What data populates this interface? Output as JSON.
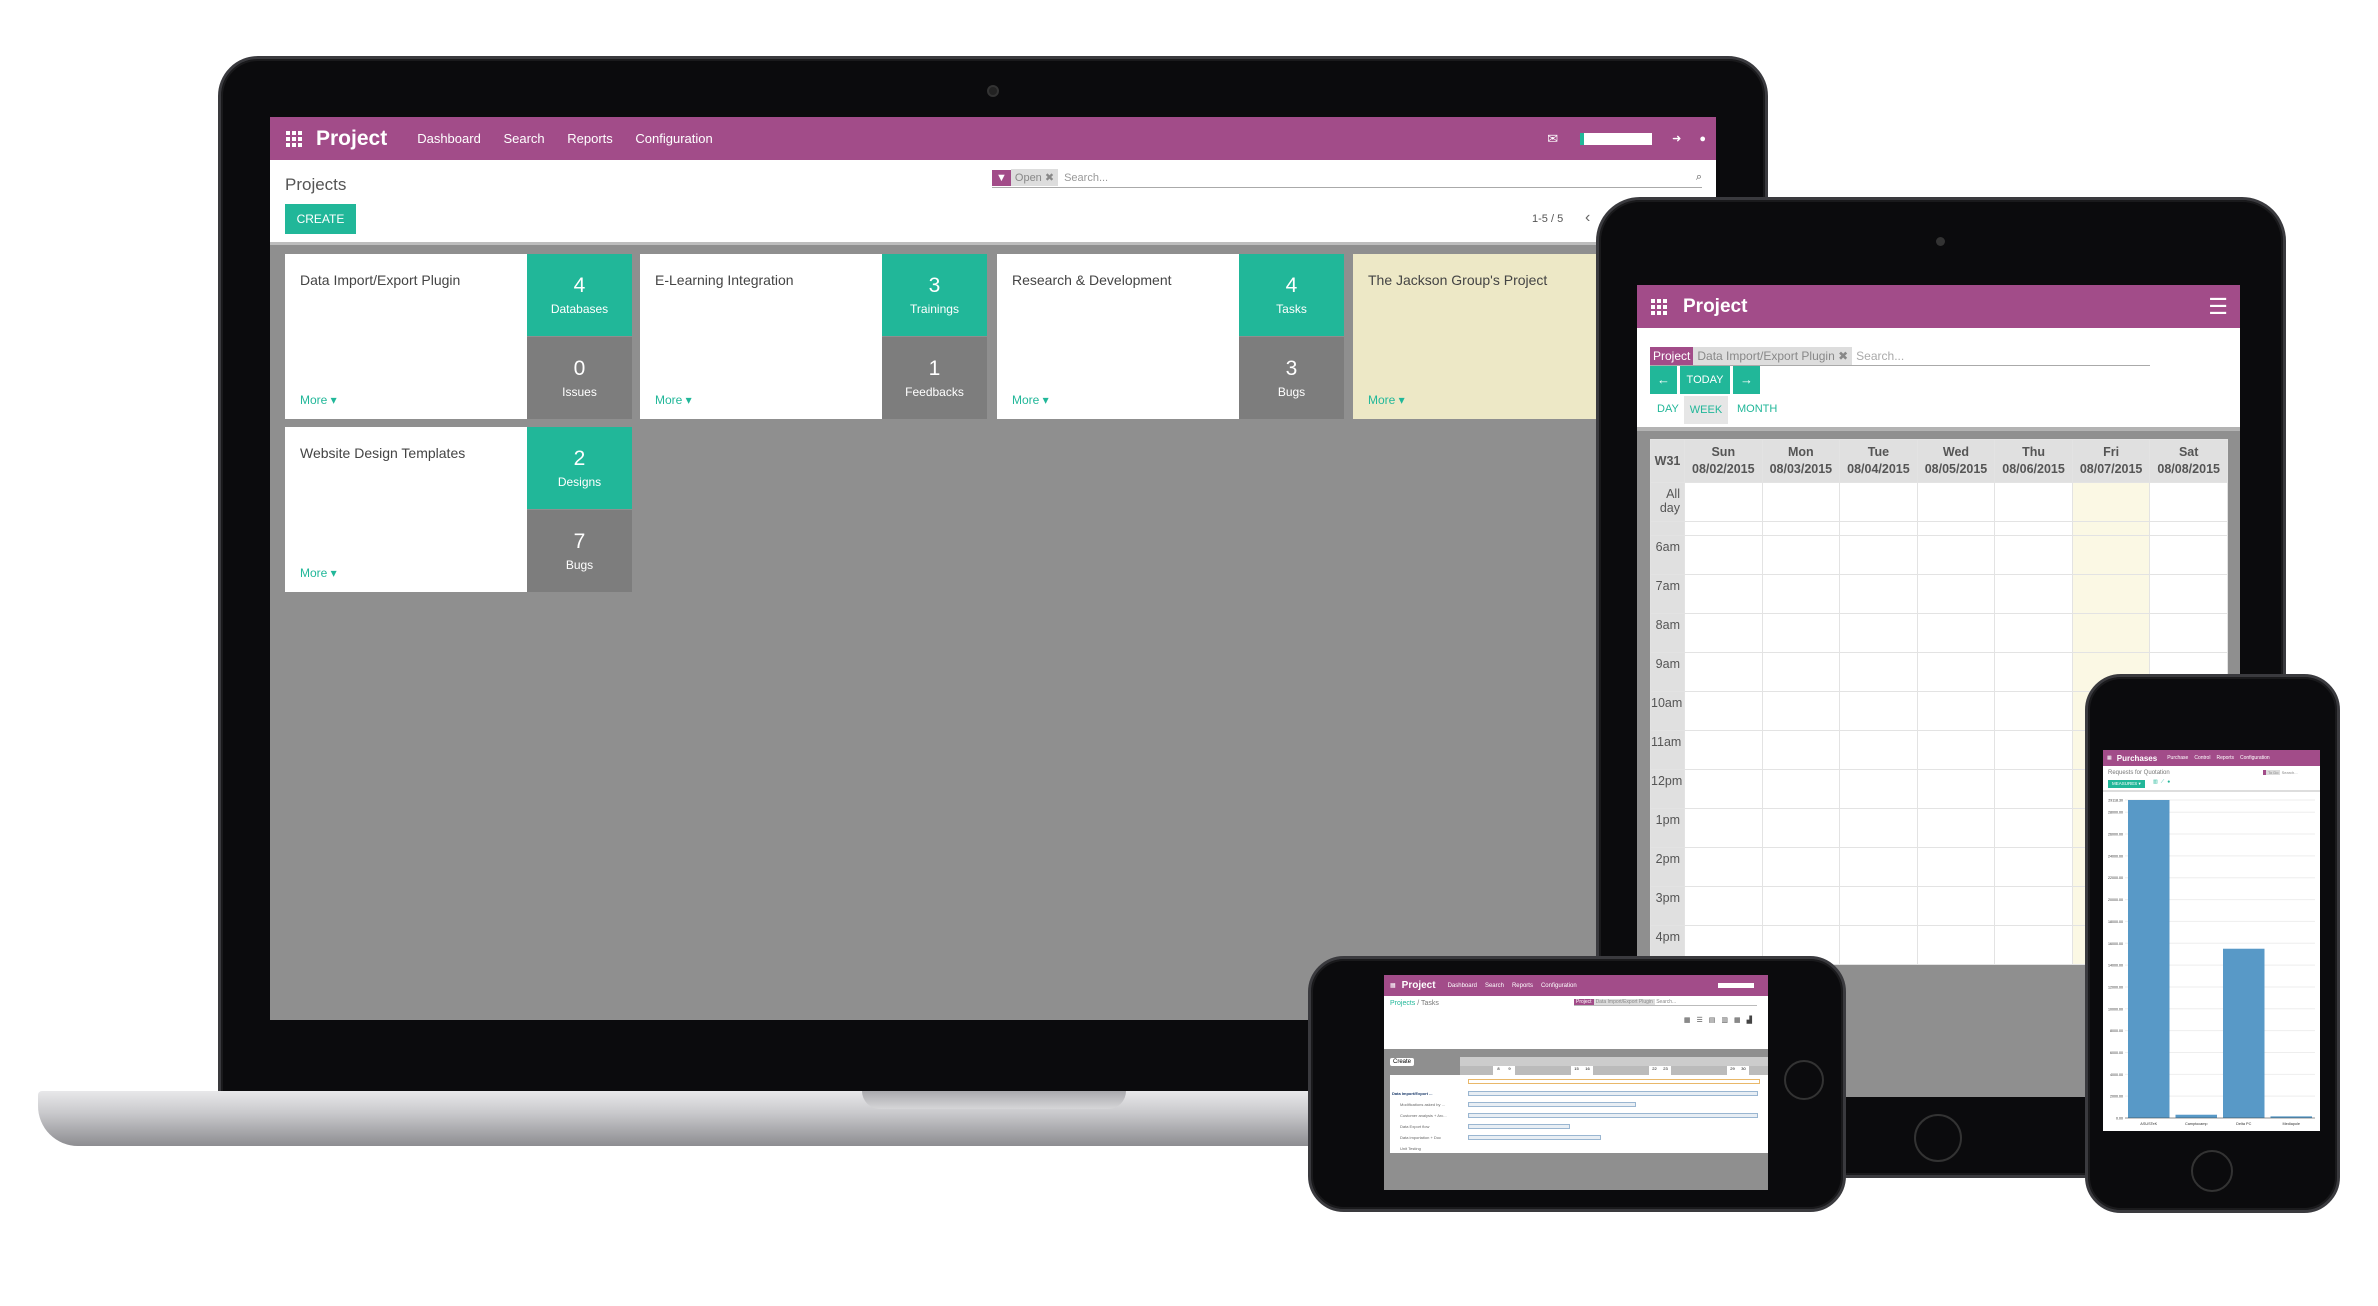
{
  "laptop": {
    "app_title": "Project",
    "menu": [
      "Dashboard",
      "Search",
      "Reports",
      "Configuration"
    ],
    "breadcrumb": "Projects",
    "create_label": "CREATE",
    "search": {
      "facet_label": "Open",
      "placeholder": "Search..."
    },
    "pager": "1-5 / 5",
    "cards": [
      {
        "title": "Data Import/Export Plugin",
        "more": "More",
        "stats": [
          {
            "value": "4",
            "label": "Databases"
          },
          {
            "value": "0",
            "label": "Issues"
          }
        ]
      },
      {
        "title": "E-Learning Integration",
        "more": "More",
        "stats": [
          {
            "value": "3",
            "label": "Trainings"
          },
          {
            "value": "1",
            "label": "Feedbacks"
          }
        ]
      },
      {
        "title": "Research & Development",
        "more": "More",
        "stats": [
          {
            "value": "4",
            "label": "Tasks"
          },
          {
            "value": "3",
            "label": "Bugs"
          }
        ]
      },
      {
        "title": "The Jackson Group's Project",
        "more": "More",
        "highlight": "#ede8c6"
      },
      {
        "title": "Website Design Templates",
        "more": "More",
        "stats": [
          {
            "value": "2",
            "label": "Designs"
          },
          {
            "value": "7",
            "label": "Bugs"
          }
        ]
      }
    ]
  },
  "tablet": {
    "app_title": "Project",
    "search": {
      "facet_label": "Project",
      "facet_value": "Data Import/Export Plugin",
      "placeholder": "Search..."
    },
    "today_label": "TODAY",
    "scale_tabs": [
      "DAY",
      "WEEK",
      "MONTH"
    ],
    "active_tab": "WEEK",
    "week": "W31",
    "days": [
      {
        "d": "Sun",
        "date": "08/02/2015"
      },
      {
        "d": "Mon",
        "date": "08/03/2015"
      },
      {
        "d": "Tue",
        "date": "08/04/2015"
      },
      {
        "d": "Wed",
        "date": "08/05/2015"
      },
      {
        "d": "Thu",
        "date": "08/06/2015"
      },
      {
        "d": "Fri",
        "date": "08/07/2015"
      },
      {
        "d": "Sat",
        "date": "08/08/2015"
      }
    ],
    "all_day": "All day",
    "hours": [
      "6am",
      "7am",
      "8am",
      "9am",
      "10am",
      "11am",
      "12pm",
      "1pm",
      "2pm",
      "3pm",
      "4pm"
    ]
  },
  "phone_landscape": {
    "app_title": "Project",
    "menu": [
      "Dashboard",
      "Search",
      "Reports",
      "Configuration"
    ],
    "breadcrumb": [
      "Projects",
      "Tasks"
    ],
    "search": {
      "facet_label": "Project",
      "facet_value": "Data Import/Export Plugin",
      "placeholder": "Search..."
    },
    "create_label": "Create",
    "gantt_days": [
      "8",
      "9",
      "15",
      "16",
      "22",
      "23",
      "29",
      "30"
    ],
    "tasks": [
      "Data Import/Export ...",
      "Modifications asked by ...",
      "Customer analysis + Arc...",
      "Data Export flow",
      "Data importation + Doc",
      "Unit Testing"
    ],
    "task_progress": [
      1.0,
      0.58,
      1.0,
      0.35,
      0.46,
      0.92
    ]
  },
  "phone_portrait": {
    "app_title": "Purchases",
    "menu": [
      "Purchase",
      "Control",
      "Reports",
      "Configuration"
    ],
    "breadcrumb": "Requests for Quotation",
    "search": {
      "facet_label": "To Do",
      "placeholder": "Search..."
    },
    "measures_label": "MEASURES",
    "chart_data": {
      "type": "bar",
      "categories": [
        "ASUSTeK",
        "Camptocamp",
        "Delta PC",
        "Mediapole"
      ],
      "values": [
        29118.3,
        300,
        15500,
        150
      ],
      "ylim": [
        0,
        29118.3
      ],
      "yticks": [
        "0.00",
        "2000.00",
        "4000.00",
        "6000.00",
        "8000.00",
        "10000.00",
        "12000.00",
        "14000.00",
        "16000.00",
        "18000.00",
        "20000.00",
        "22000.00",
        "24000.00",
        "26000.00",
        "28000.00",
        "29118.30"
      ],
      "color": "#5899c7",
      "grid": true
    }
  },
  "colors": {
    "brand": "#a24c89",
    "accent": "#21b799"
  }
}
